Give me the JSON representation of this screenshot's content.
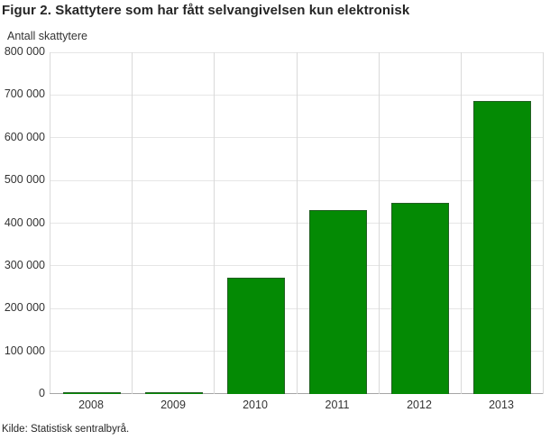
{
  "chart_data": {
    "type": "bar",
    "title": "Figur 2. Skattytere som har fått selvangivelsen kun elektronisk",
    "ylabel": "Antall skattytere",
    "xlabel": "",
    "source": "Kilde: Statistisk sentralbyrå.",
    "categories": [
      "2008",
      "2009",
      "2010",
      "2011",
      "2012",
      "2013"
    ],
    "values": [
      2000,
      3000,
      273000,
      430000,
      447000,
      687000
    ],
    "ylim": [
      0,
      800000
    ],
    "ytick_values": [
      0,
      100000,
      200000,
      300000,
      400000,
      500000,
      600000,
      700000,
      800000
    ],
    "ytick_labels": [
      "0",
      "100 000",
      "200 000",
      "300 000",
      "400 000",
      "500 000",
      "600 000",
      "700 000",
      "800 000"
    ],
    "grid": true,
    "legend": "none",
    "bar_color": "#048a04"
  }
}
